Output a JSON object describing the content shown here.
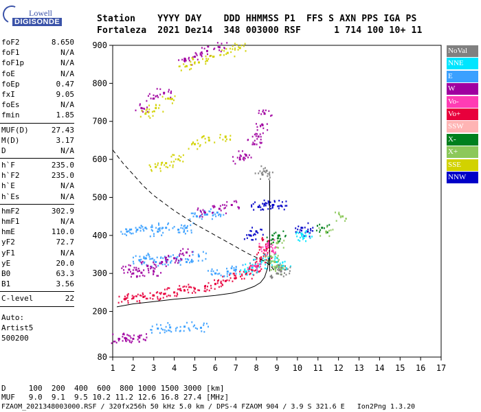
{
  "logo": {
    "line1": "Lowell",
    "line2": "DIGISONDE"
  },
  "header": {
    "line1": "Station    YYYY DAY    DDD HHMMSS P1  FFS S AXN PPS IGA PS",
    "line2": "Fortaleza  2021 Dez14  348 003000 RSF      1 714 100 10+ 11"
  },
  "params": {
    "group1": [
      {
        "label": "foF2",
        "value": "8.650"
      },
      {
        "label": "foF1",
        "value": "N/A"
      },
      {
        "label": "foF1p",
        "value": "N/A"
      },
      {
        "label": "foE",
        "value": "N/A"
      },
      {
        "label": "foEp",
        "value": "0.47"
      },
      {
        "label": "fxI",
        "value": "9.05"
      },
      {
        "label": "foEs",
        "value": "N/A"
      },
      {
        "label": "fmin",
        "value": "1.85"
      }
    ],
    "group2": [
      {
        "label": "MUF(D)",
        "value": "27.43"
      },
      {
        "label": "M(D)",
        "value": "3.17"
      },
      {
        "label": "D",
        "value": "N/A"
      }
    ],
    "group3": [
      {
        "label": "h`F",
        "value": "235.0"
      },
      {
        "label": "h`F2",
        "value": "235.0"
      },
      {
        "label": "h`E",
        "value": "N/A"
      },
      {
        "label": "h`Es",
        "value": "N/A"
      }
    ],
    "group4": [
      {
        "label": "hmF2",
        "value": "302.9"
      },
      {
        "label": "hmF1",
        "value": "N/A"
      },
      {
        "label": "hmE",
        "value": "110.0"
      },
      {
        "label": "yF2",
        "value": "72.7"
      },
      {
        "label": "yF1",
        "value": "N/A"
      },
      {
        "label": "yE",
        "value": "20.0"
      },
      {
        "label": "B0",
        "value": "63.3"
      },
      {
        "label": "B1",
        "value": "3.56"
      }
    ],
    "group5": [
      {
        "label": "C-level",
        "value": "22"
      }
    ],
    "auto_label": "Auto:",
    "auto_name": "Artist5",
    "auto_code": "500200"
  },
  "legend": [
    {
      "label": "NoVal",
      "color": "#808080"
    },
    {
      "label": "NNE",
      "color": "#00e5ff"
    },
    {
      "label": "E",
      "color": "#3aa0ff"
    },
    {
      "label": "W",
      "color": "#a000a0"
    },
    {
      "label": "Vo-",
      "color": "#ff3cb4"
    },
    {
      "label": "Vo+",
      "color": "#e8003c"
    },
    {
      "label": "SSW",
      "color": "#ffb4b4"
    },
    {
      "label": "X-",
      "color": "#00801e"
    },
    {
      "label": "X+",
      "color": "#8cc85a"
    },
    {
      "label": "SSE",
      "color": "#d2d200"
    },
    {
      "label": "NNW",
      "color": "#0000c8"
    }
  ],
  "chart_data": {
    "type": "scatter",
    "title": "",
    "xlabel": "",
    "ylabel": "",
    "xlim": [
      1,
      17
    ],
    "ylim": [
      80,
      900
    ],
    "x_ticks": [
      1,
      2,
      3,
      4,
      5,
      6,
      7,
      8,
      9,
      10,
      11,
      12,
      13,
      14,
      15,
      16,
      17
    ],
    "y_ticks": [
      80,
      200,
      300,
      400,
      500,
      600,
      700,
      800,
      900
    ],
    "grid": false,
    "series": [
      {
        "name": "Vo+",
        "color": "#e8003c",
        "points": [
          [
            1.6,
            233
          ],
          [
            2,
            235
          ],
          [
            2.5,
            238
          ],
          [
            3,
            242
          ],
          [
            3.5,
            246
          ],
          [
            4,
            250
          ],
          [
            4.5,
            255
          ],
          [
            5,
            260
          ],
          [
            5.5,
            266
          ],
          [
            6,
            272
          ],
          [
            6.5,
            280
          ],
          [
            7,
            288
          ],
          [
            7.5,
            298
          ],
          [
            7.8,
            308
          ],
          [
            8,
            318
          ],
          [
            8.2,
            332
          ],
          [
            8.4,
            350
          ],
          [
            8.5,
            365
          ],
          [
            8.6,
            385
          ]
        ]
      },
      {
        "name": "E",
        "color": "#3aa0ff",
        "points": [
          [
            1.7,
            410
          ],
          [
            2.2,
            415
          ],
          [
            2.6,
            420
          ],
          [
            3.2,
            410
          ],
          [
            3.6,
            420
          ],
          [
            4.2,
            415
          ],
          [
            4.6,
            420
          ],
          [
            5.1,
            450
          ],
          [
            5.6,
            455
          ],
          [
            6.1,
            460
          ],
          [
            2.3,
            335
          ],
          [
            2.6,
            340
          ],
          [
            3.1,
            330
          ],
          [
            3.6,
            335
          ],
          [
            4.1,
            340
          ],
          [
            4.6,
            330
          ],
          [
            5.2,
            345
          ],
          [
            6.0,
            300
          ],
          [
            6.6,
            305
          ],
          [
            7.0,
            310
          ],
          [
            3.2,
            155
          ],
          [
            3.8,
            158
          ],
          [
            4.5,
            160
          ],
          [
            5.3,
            157
          ]
        ]
      },
      {
        "name": "W",
        "color": "#a000a0",
        "points": [
          [
            1.3,
            128
          ],
          [
            1.6,
            130
          ],
          [
            2.0,
            128
          ],
          [
            2.3,
            131
          ],
          [
            2.0,
            300
          ],
          [
            1.8,
            310
          ],
          [
            2.4,
            302
          ],
          [
            2.7,
            320
          ],
          [
            3.0,
            305
          ],
          [
            3.4,
            330
          ],
          [
            4.0,
            340
          ],
          [
            4.6,
            355
          ],
          [
            5.5,
            460
          ],
          [
            6.2,
            470
          ],
          [
            6.8,
            480
          ],
          [
            7.2,
            600
          ],
          [
            7.5,
            610
          ],
          [
            7.9,
            640
          ],
          [
            8.1,
            660
          ],
          [
            8.3,
            690
          ],
          [
            8.4,
            720
          ],
          [
            4.5,
            860
          ],
          [
            5.0,
            870
          ],
          [
            5.6,
            885
          ],
          [
            6.2,
            895
          ],
          [
            3.0,
            760
          ],
          [
            3.5,
            775
          ],
          [
            2.4,
            735
          ]
        ]
      },
      {
        "name": "NNW",
        "color": "#0000c8",
        "points": [
          [
            8.1,
            475
          ],
          [
            8.4,
            482
          ],
          [
            8.8,
            480
          ],
          [
            9.2,
            478
          ],
          [
            7.7,
            400
          ],
          [
            8.0,
            410
          ],
          [
            10.2,
            420
          ],
          [
            10.5,
            410
          ]
        ]
      },
      {
        "name": "SSE",
        "color": "#d2d200",
        "points": [
          [
            3.1,
            580
          ],
          [
            3.6,
            590
          ],
          [
            4.2,
            600
          ],
          [
            5.0,
            640
          ],
          [
            5.7,
            650
          ],
          [
            6.5,
            660
          ],
          [
            4.6,
            845
          ],
          [
            5.2,
            855
          ],
          [
            5.9,
            870
          ],
          [
            6.6,
            880
          ],
          [
            7.2,
            893
          ],
          [
            2.6,
            720
          ],
          [
            3.1,
            735
          ],
          [
            3.7,
            760
          ]
        ]
      },
      {
        "name": "NNE",
        "color": "#00e5ff",
        "points": [
          [
            7.5,
            305
          ],
          [
            7.8,
            315
          ],
          [
            8.2,
            325
          ],
          [
            8.6,
            340
          ],
          [
            9.0,
            330
          ],
          [
            9.3,
            320
          ],
          [
            10.2,
            405
          ],
          [
            10.4,
            398
          ]
        ]
      },
      {
        "name": "X+",
        "color": "#8cc85a",
        "points": [
          [
            8.7,
            345
          ],
          [
            8.9,
            330
          ],
          [
            9.0,
            320
          ],
          [
            9.2,
            310
          ],
          [
            9.0,
            380
          ],
          [
            11.4,
            410
          ],
          [
            12.2,
            450
          ]
        ]
      },
      {
        "name": "X-",
        "color": "#00801e",
        "points": [
          [
            8.8,
            390
          ],
          [
            9.1,
            400
          ],
          [
            11.2,
            420
          ]
        ]
      },
      {
        "name": "Vo-",
        "color": "#ff3cb4",
        "points": [
          [
            8.5,
            370
          ],
          [
            8.6,
            380
          ],
          [
            8.8,
            360
          ],
          [
            7.9,
            320
          ]
        ]
      },
      {
        "name": "NoVal",
        "color": "#808080",
        "points": [
          [
            9.0,
            300
          ],
          [
            9.2,
            305
          ],
          [
            9.4,
            310
          ],
          [
            8.3,
            560
          ],
          [
            8.5,
            570
          ]
        ]
      }
    ],
    "lines": [
      {
        "style": "solid-black",
        "points": [
          [
            1.2,
            212
          ],
          [
            2,
            220
          ],
          [
            3,
            226
          ],
          [
            4,
            232
          ],
          [
            5,
            237
          ],
          [
            6,
            242
          ],
          [
            6.8,
            248
          ],
          [
            7.4,
            256
          ],
          [
            7.9,
            266
          ],
          [
            8.2,
            276
          ],
          [
            8.4,
            290
          ],
          [
            8.55,
            315
          ],
          [
            8.6,
            340
          ]
        ]
      },
      {
        "style": "solid-black-vertical",
        "points": [
          [
            8.65,
            305
          ],
          [
            8.65,
            545
          ]
        ]
      },
      {
        "style": "dashed-black",
        "points": [
          [
            1.0,
            625
          ],
          [
            1.5,
            590
          ],
          [
            2,
            560
          ],
          [
            2.5,
            530
          ],
          [
            3,
            505
          ],
          [
            4,
            465
          ],
          [
            5,
            430
          ],
          [
            6,
            400
          ],
          [
            7,
            370
          ],
          [
            7.6,
            352
          ],
          [
            8,
            342
          ],
          [
            8.4,
            332
          ],
          [
            8.7,
            320
          ],
          [
            8.9,
            305
          ]
        ]
      }
    ]
  },
  "footer": {
    "line1": "D     100  200  400  600  800 1000 1500 3000 [km]",
    "line2": "MUF   9.0  9.1  9.5 10.2 11.2 12.6 16.8 27.4 [MHz]",
    "line3": "FZAOM_2021348003000.RSF / 320fx256h 50 kHz 5.0 km / DPS-4 FZAOM 904 / 3.9 S 321.6 E   Ion2Png 1.3.20"
  }
}
